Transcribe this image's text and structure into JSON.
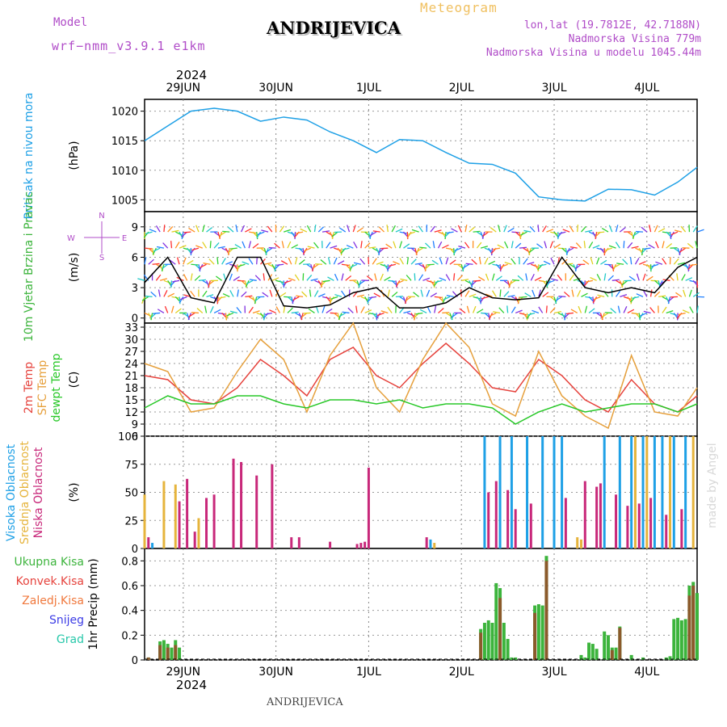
{
  "header": {
    "model_label": "Model",
    "model_name": "wrf−nmm_v3.9.1 e1km",
    "station": "ANDRIJEVICA",
    "product": "Meteogram",
    "lonlat": "lon,lat (19.7812E, 42.7188N)",
    "elevation": "Nadmorska Visina 779m",
    "model_elevation": "Nadmorska Visina u modelu 1045.44m",
    "year_top": "2024",
    "year_bottom": "2024",
    "footer_station": "ANDRIJEVICA",
    "credit": "made by Angel"
  },
  "colors": {
    "pressure": "#1ea0e6",
    "temp2m": "#e6423c",
    "sfc": "#e6a03c",
    "dew": "#28c828",
    "high": "#1ea0e6",
    "mid": "#e6b43c",
    "low": "#c8287a",
    "total": "#3cb43c",
    "conv": "#e6423c",
    "frz": "#f0783c",
    "snow": "#3c3ce6",
    "hail": "#28c8aa",
    "magenta": "#b04cc8"
  },
  "chart_data": [
    {
      "type": "line",
      "panel": "pressure",
      "ylabel": "Pritisak na nivou mora",
      "unit": "(hPa)",
      "x_ticks": [
        "29JUN",
        "30JUN",
        "1JUL",
        "2JUL",
        "3JUL",
        "4JUL"
      ],
      "x_range_days": [
        "2024-06-28 14:00",
        "2024-07-04 13:00"
      ],
      "ylim": [
        1003,
        1022
      ],
      "yticks": [
        1005,
        1010,
        1015,
        1020
      ],
      "series": [
        {
          "x_hours": [
            0,
            6,
            12,
            18,
            24,
            30,
            36,
            42,
            48,
            54,
            60,
            66,
            72,
            78,
            84,
            90,
            96,
            102,
            108,
            114,
            120,
            126,
            132,
            138,
            143
          ],
          "values": [
            1015,
            1017.5,
            1020,
            1020.5,
            1020,
            1018.3,
            1019,
            1018.5,
            1016.5,
            1015,
            1013,
            1015.2,
            1015,
            1013,
            1011.2,
            1011,
            1009.5,
            1005.5,
            1005,
            1004.8,
            1006.8,
            1006.7,
            1005.8,
            1008,
            1010.5
          ]
        }
      ]
    },
    {
      "type": "line",
      "panel": "wind",
      "ylabel": "10m Vjetar Brzina i Pravac",
      "unit": "(m/s)",
      "direction_legend": {
        "n": "N",
        "s": "S",
        "e": "E",
        "w": "W"
      },
      "ylim": [
        -0.5,
        10.5
      ],
      "yticks": [
        0,
        3,
        6,
        9
      ],
      "series": [
        {
          "name": "speed",
          "x_hours": [
            0,
            6,
            12,
            18,
            24,
            30,
            36,
            42,
            48,
            54,
            60,
            66,
            72,
            78,
            84,
            90,
            96,
            102,
            108,
            114,
            120,
            126,
            132,
            138,
            143
          ],
          "values": [
            3.5,
            6,
            2,
            1.5,
            6,
            6,
            1.2,
            1,
            1.3,
            2.5,
            3,
            1,
            1,
            1.5,
            3,
            2,
            1.8,
            2,
            6,
            3,
            2.5,
            3,
            2.5,
            5,
            6
          ]
        }
      ]
    },
    {
      "type": "line",
      "panel": "temperature",
      "ylabels": [
        "2m Temp",
        "SFC Temp",
        "dewpt Temp"
      ],
      "unit": "(C)",
      "ylim": [
        6,
        34
      ],
      "yticks": [
        6,
        9,
        12,
        15,
        18,
        21,
        24,
        27,
        30,
        33
      ],
      "series": [
        {
          "name": "2m Temp",
          "x_hours": [
            0,
            6,
            12,
            18,
            24,
            30,
            36,
            42,
            48,
            54,
            60,
            66,
            72,
            78,
            84,
            90,
            96,
            102,
            108,
            114,
            120,
            126,
            132,
            138,
            143
          ],
          "values": [
            21,
            20,
            15,
            14,
            18,
            25,
            21,
            16,
            25,
            28,
            21,
            18,
            24,
            29,
            24,
            18,
            17,
            25,
            21,
            15,
            12,
            20,
            14,
            12,
            16
          ]
        },
        {
          "name": "SFC Temp",
          "x_hours": [
            0,
            6,
            12,
            18,
            24,
            30,
            36,
            42,
            48,
            54,
            60,
            66,
            72,
            78,
            84,
            90,
            96,
            102,
            108,
            114,
            120,
            126,
            132,
            138,
            143
          ],
          "values": [
            24,
            22,
            12,
            13,
            22,
            30,
            25,
            12,
            26,
            34,
            18,
            12,
            25,
            34,
            28,
            14,
            11,
            27,
            16,
            11,
            8,
            26,
            12,
            11,
            18
          ]
        },
        {
          "name": "dewpt Temp",
          "x_hours": [
            0,
            6,
            12,
            18,
            24,
            30,
            36,
            42,
            48,
            54,
            60,
            66,
            72,
            78,
            84,
            90,
            96,
            102,
            108,
            114,
            120,
            126,
            132,
            138,
            143
          ],
          "values": [
            13,
            16,
            14,
            14,
            16,
            16,
            14,
            13,
            15,
            15,
            14,
            15,
            13,
            14,
            14,
            13,
            9,
            12,
            14,
            12,
            13,
            14,
            14,
            12,
            14
          ]
        }
      ]
    },
    {
      "type": "bar",
      "panel": "cloud",
      "ylabels": [
        "Visoka Oblacnost",
        "Srednja Oblacnost",
        "Niska Oblacnost"
      ],
      "unit": "(%)",
      "ylim": [
        0,
        100
      ],
      "yticks": [
        0,
        25,
        50,
        75,
        100
      ],
      "series": [
        {
          "name": "Niska Oblacnost",
          "x_hours": [
            1,
            9,
            11,
            13,
            16,
            18,
            23,
            25,
            29,
            33,
            38,
            40,
            48,
            55,
            56,
            57,
            58,
            73,
            89,
            91,
            94,
            96,
            100,
            109,
            114,
            117,
            118,
            122,
            125,
            128,
            131,
            135,
            139
          ],
          "values": [
            10,
            42,
            62,
            15,
            45,
            48,
            80,
            77,
            65,
            75,
            10,
            10,
            6,
            4,
            5,
            6,
            72,
            10,
            50,
            60,
            52,
            35,
            40,
            45,
            60,
            55,
            58,
            48,
            38,
            40,
            45,
            30,
            35
          ]
        },
        {
          "name": "Srednja Oblacnost",
          "x_hours": [
            0,
            5,
            8,
            14,
            75,
            112,
            113,
            127,
            130,
            136,
            142
          ],
          "values": [
            48,
            60,
            57,
            27,
            5,
            10,
            8,
            100,
            100,
            100,
            100
          ]
        },
        {
          "name": "Visoka Oblacnost",
          "x_hours": [
            2,
            74,
            88,
            92,
            95,
            99,
            103,
            106,
            108,
            119,
            123,
            126,
            129,
            132,
            134,
            137,
            140
          ],
          "values": [
            5,
            8,
            100,
            100,
            100,
            100,
            100,
            100,
            100,
            100,
            100,
            100,
            100,
            100,
            100,
            100,
            100
          ]
        }
      ]
    },
    {
      "type": "bar",
      "panel": "precipitation",
      "ylabels": [
        "Ukupna Kisa",
        "Konvek.Kisa",
        "Zaledj.Kisa",
        "Snijeg",
        "Grad"
      ],
      "unit": "1hr Precip (mm)",
      "ylim": [
        0,
        0.9
      ],
      "yticks": [
        0,
        0.2,
        0.4,
        0.6,
        0.8
      ],
      "series": [
        {
          "name": "Ukupna Kisa",
          "x_hours": [
            1,
            4,
            5,
            6,
            7,
            8,
            9,
            87,
            88,
            89,
            90,
            91,
            92,
            93,
            94,
            95,
            96,
            101,
            102,
            103,
            104,
            113,
            114,
            115,
            116,
            117,
            119,
            120,
            121,
            122,
            123,
            126,
            129,
            135,
            136,
            137,
            138,
            139,
            140,
            141,
            142,
            143
          ],
          "values": [
            0.02,
            0.15,
            0.16,
            0.13,
            0.1,
            0.16,
            0.1,
            0.25,
            0.3,
            0.32,
            0.3,
            0.62,
            0.58,
            0.3,
            0.17,
            0.02,
            0.02,
            0.44,
            0.45,
            0.44,
            0.84,
            0.04,
            0.02,
            0.14,
            0.13,
            0.09,
            0.23,
            0.2,
            0.1,
            0.1,
            0.27,
            0.04,
            0.02,
            0.02,
            0.03,
            0.33,
            0.34,
            0.32,
            0.33,
            0.6,
            0.63,
            0.54
          ]
        },
        {
          "name": "Konvek.Kisa",
          "x_hours": [
            1,
            4,
            6,
            8,
            87,
            92,
            101,
            104,
            121,
            123,
            141,
            142
          ],
          "values": [
            0.02,
            0.12,
            0.1,
            0.12,
            0.22,
            0.5,
            0.38,
            0.8,
            0.08,
            0.26,
            0.52,
            0.6
          ]
        }
      ]
    }
  ]
}
